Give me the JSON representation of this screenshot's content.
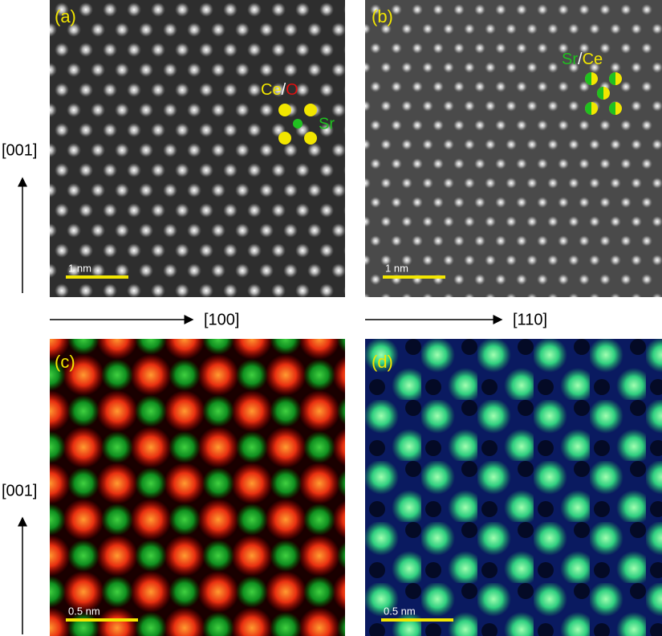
{
  "panels": [
    {
      "label": "(a)",
      "scale_bar": "1 nm",
      "annotation": {
        "parts": [
          "Ce",
          "/",
          "O"
        ],
        "site": "Sr"
      }
    },
    {
      "label": "(b)",
      "scale_bar": "1 nm",
      "annotation": {
        "parts": [
          "Sr",
          "/",
          "Ce"
        ]
      }
    },
    {
      "label": "(c)",
      "scale_bar": "0.5 nm"
    },
    {
      "label": "(d)",
      "scale_bar": "0.5 nm"
    }
  ],
  "axes": {
    "vertical_top": "[001]",
    "vertical_bottom": "[001]",
    "horizontal_left": "[100]",
    "horizontal_right": "[110]"
  }
}
